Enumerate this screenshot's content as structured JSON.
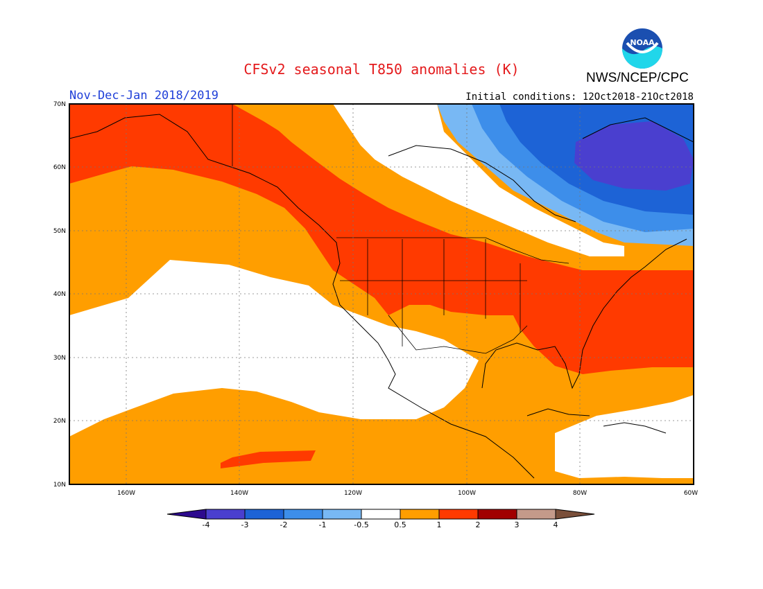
{
  "title": "CFSv2 seasonal T850 anomalies (K)",
  "period": "Nov-Dec-Jan 2018/2019",
  "initial_conditions": "Initial conditions: 12Oct2018-21Oct2018",
  "agency": "NWS/NCEP/CPC",
  "logo_text": "NOAA",
  "lat_labels": [
    "70N",
    "60N",
    "50N",
    "40N",
    "30N",
    "20N",
    "10N"
  ],
  "lon_labels": [
    "160W",
    "140W",
    "120W",
    "100W",
    "80W",
    "60W"
  ],
  "colorbar": {
    "tick_labels": [
      "-4",
      "-3",
      "-2",
      "-1",
      "-0.5",
      "0.5",
      "1",
      "2",
      "3",
      "4"
    ],
    "colors": [
      "#2d0a8e",
      "#4a3fcf",
      "#1d63d6",
      "#3d8eea",
      "#78b8f4",
      "#ffffff",
      "#ff9e00",
      "#ff3a00",
      "#a10000",
      "#c49a8a",
      "#7a4f3a"
    ]
  }
}
